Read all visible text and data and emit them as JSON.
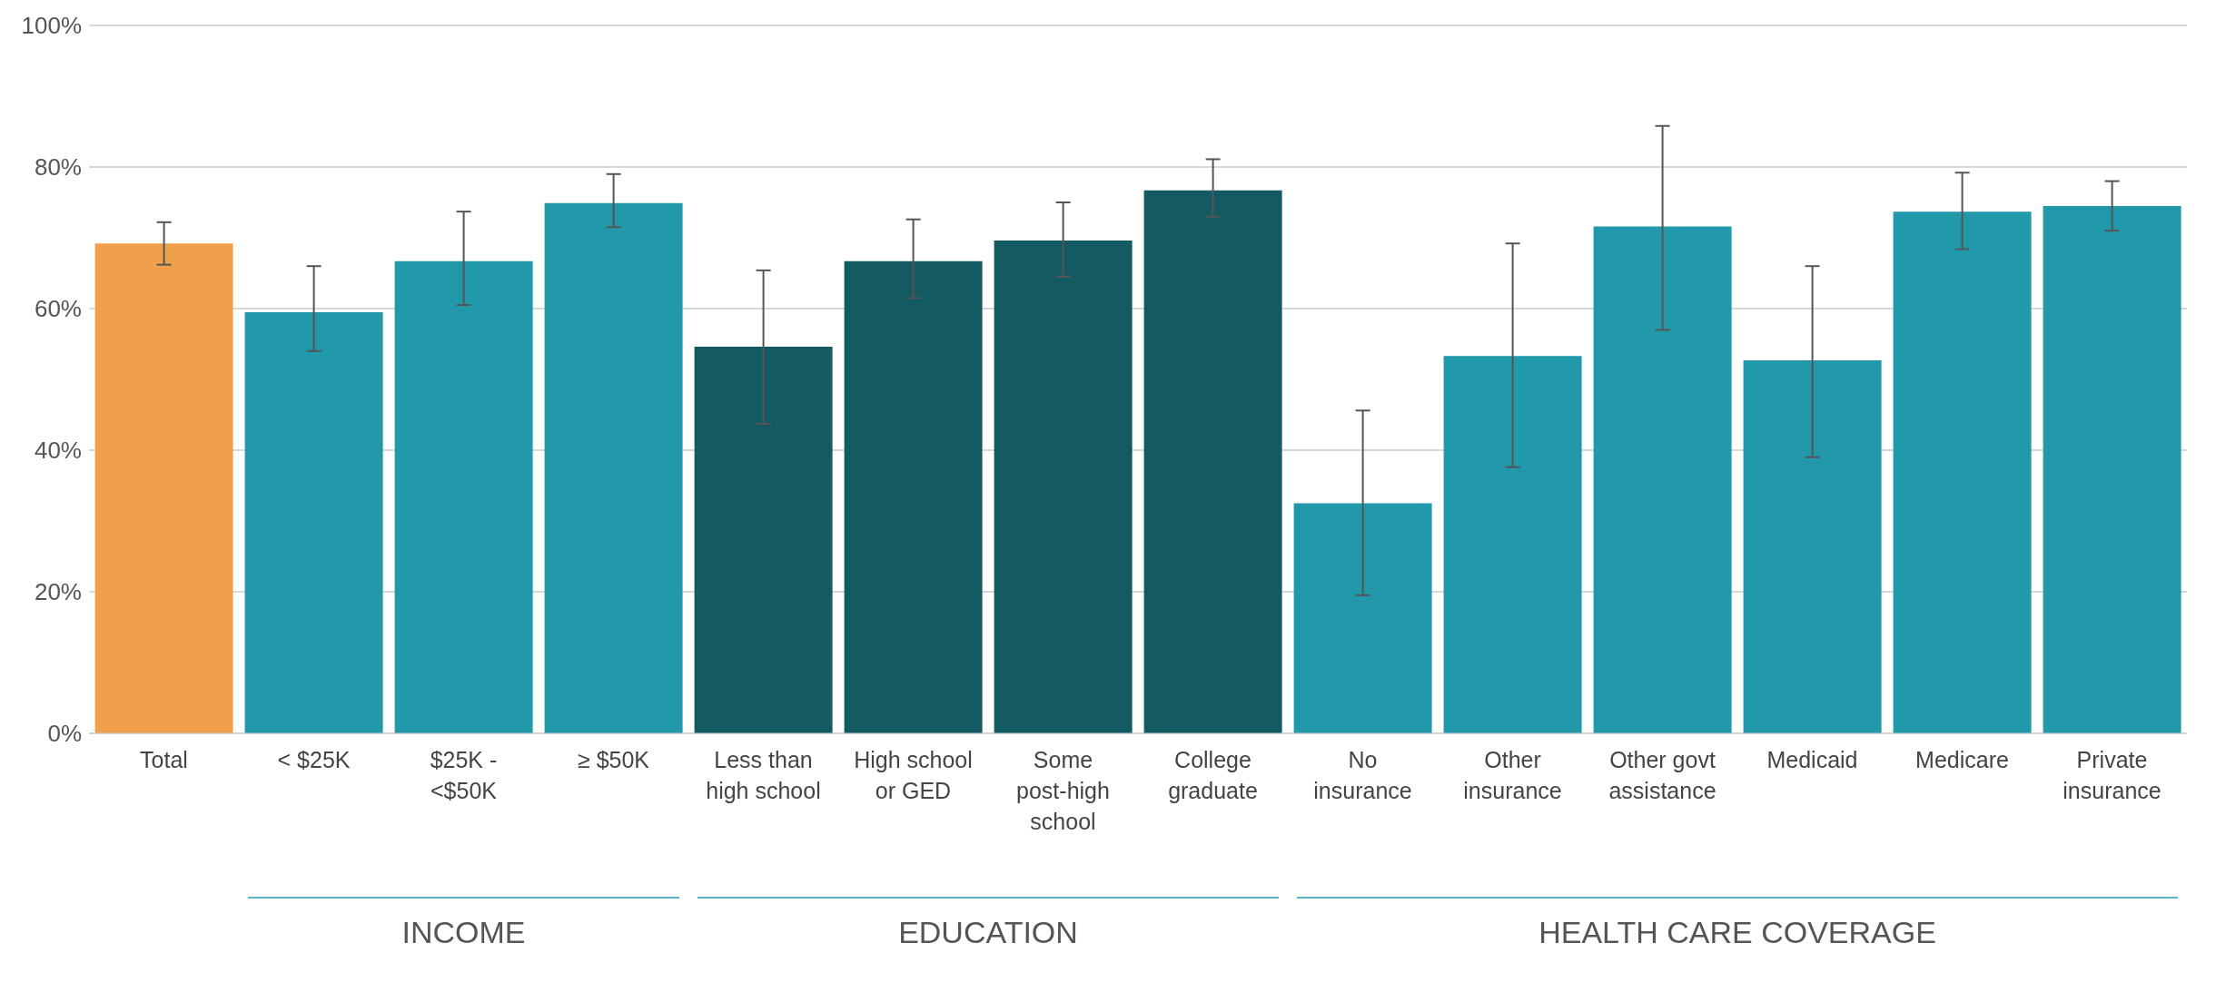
{
  "chart_data": {
    "type": "bar",
    "categories": [
      "Total",
      "< $25K",
      "$25K - <$50K",
      "≥ $50K",
      "Less than high school",
      "High school or GED",
      "Some post-high school",
      "College graduate",
      "No insurance",
      "Other insurance",
      "Other govt assistance",
      "Medicaid",
      "Medicare",
      "Private insurance"
    ],
    "values": [
      69.2,
      59.5,
      66.7,
      74.9,
      54.6,
      66.7,
      69.6,
      76.7,
      32.5,
      53.3,
      71.6,
      52.7,
      73.7,
      74.5
    ],
    "errors": [
      [
        66.2,
        72.2
      ],
      [
        54,
        66
      ],
      [
        60.5,
        73.7
      ],
      [
        71.5,
        79
      ],
      [
        43.7,
        65.4
      ],
      [
        61.5,
        72.6
      ],
      [
        64.5,
        75
      ],
      [
        73,
        81.1
      ],
      [
        19.5,
        45.6
      ],
      [
        37.6,
        69.2
      ],
      [
        57,
        85.8
      ],
      [
        39,
        66
      ],
      [
        68.4,
        79.2
      ],
      [
        71,
        78
      ]
    ],
    "colors": [
      "#f0a04b",
      "#2299ab",
      "#2299ab",
      "#2299ab",
      "#145a63",
      "#145a63",
      "#145a63",
      "#145a63",
      "#2299ab",
      "#2299ab",
      "#2299ab",
      "#2299ab",
      "#2299ab",
      "#2299ab"
    ],
    "ylim": [
      0,
      100
    ],
    "yticks": [
      {
        "value": 0,
        "label": "0%"
      },
      {
        "value": 20,
        "label": "20%"
      },
      {
        "value": 40,
        "label": "40%"
      },
      {
        "value": 60,
        "label": "60%"
      },
      {
        "value": 80,
        "label": "80%"
      },
      {
        "value": 100,
        "label": "100%"
      }
    ],
    "grid": "y",
    "annotations": [
      "INCOME",
      "EDUCATION",
      "HEALTH CARE COVERAGE"
    ]
  }
}
